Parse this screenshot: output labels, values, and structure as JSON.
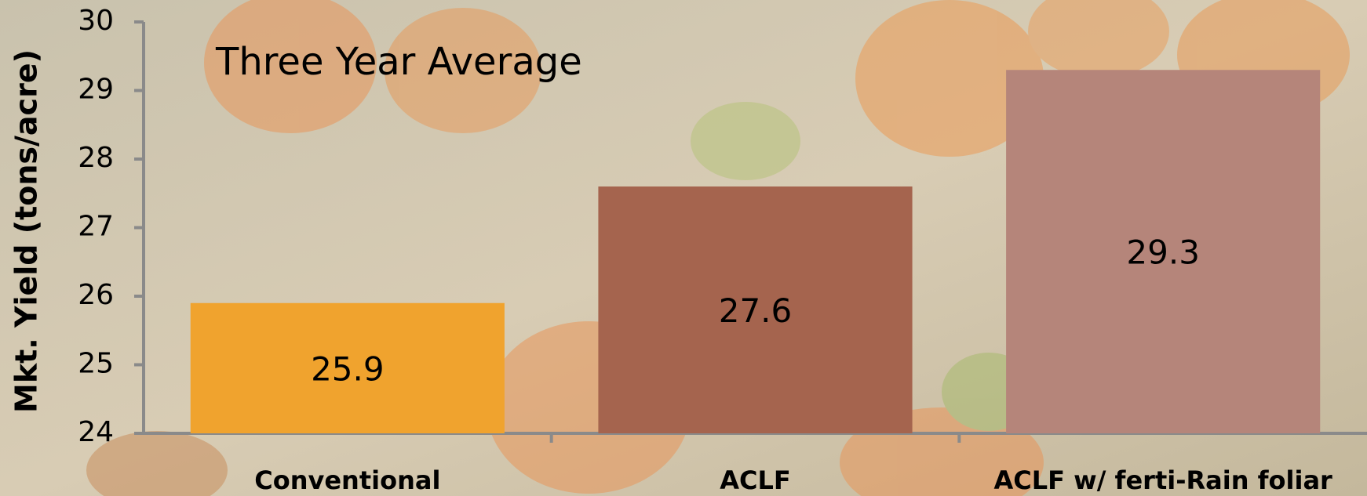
{
  "chart_data": {
    "type": "bar",
    "title": "Three Year Average",
    "y_label": "Mkt. Yield (tons/acre)",
    "categories": [
      "Conventional",
      "ACLF",
      "ACLF w/ ferti-Rain foliar"
    ],
    "values": [
      25.9,
      27.6,
      29.3
    ],
    "colors": [
      "#f0a32e",
      "#a5644e",
      "#b5857a"
    ],
    "ylim": [
      24,
      30
    ],
    "yticks": [
      24,
      25,
      26,
      27,
      28,
      29,
      30
    ]
  }
}
